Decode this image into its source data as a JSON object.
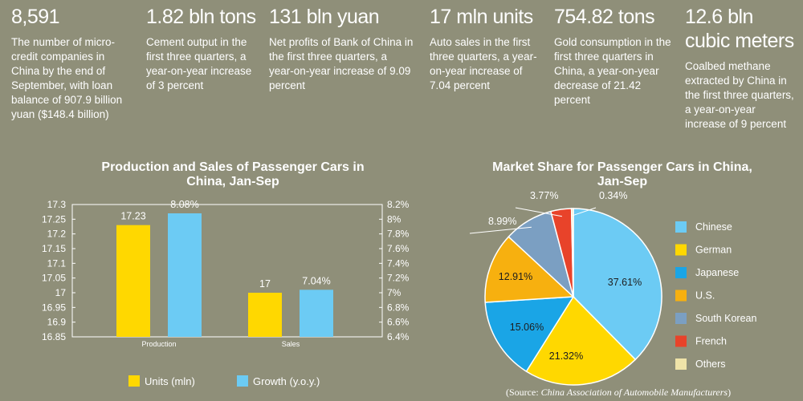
{
  "stats": [
    {
      "value": "8,591",
      "desc": "The number of micro-credit companies in China by the end of September, with loan balance of 907.9 billion yuan ($148.4 billion)"
    },
    {
      "value": "1.82 bln tons",
      "desc": "Cement output in the first three quarters, a year-on-year increase of 3 percent"
    },
    {
      "value": "131 bln yuan",
      "desc": "Net profits of Bank of China in the first three quarters, a year-on-year increase of 9.09 percent"
    },
    {
      "value": "17 mln units",
      "desc": "Auto sales in the first three quarters, a year-on-year increase of 7.04 percent"
    },
    {
      "value": "754.82 tons",
      "desc": "Gold consumption in the first three quarters in China, a year-on-year decrease of  21.42 percent"
    },
    {
      "value": "12.6 bln cubic meters",
      "desc": "Coalbed methane extracted by China in the first three quarters, a year-on-year increase of 9 percent"
    }
  ],
  "source": {
    "prefix": "(Source: ",
    "name": "China Association of Automobile Manufacturers",
    "suffix": ")"
  },
  "chart_data": [
    {
      "type": "bar",
      "title": "Production and Sales of Passenger Cars in China, Jan-Sep",
      "categories": [
        "Production",
        "Sales"
      ],
      "series": [
        {
          "name": "Units (mln)",
          "values": [
            17.23,
            17
          ],
          "labels": [
            "17.23",
            "17"
          ],
          "axis": "left",
          "color": "#ffd800"
        },
        {
          "name": "Growth (y.o.y.)",
          "values": [
            8.08,
            7.04
          ],
          "labels": [
            "8.08%",
            "7.04%"
          ],
          "axis": "right",
          "color": "#6ccbf4"
        }
      ],
      "ylim_left": [
        16.85,
        17.3
      ],
      "yticks_left": [
        "17.3",
        "17.25",
        "17.2",
        "17.15",
        "17.1",
        "17.05",
        "17",
        "16.95",
        "16.9",
        "16.85"
      ],
      "ylim_right": [
        6.4,
        8.2
      ],
      "yticks_right": [
        "8.2%",
        "8%",
        "7.8%",
        "7.6%",
        "7.4%",
        "7.2%",
        "7%",
        "6.8%",
        "6.6%",
        "6.4%"
      ],
      "legend_position": "bottom",
      "grid": false
    },
    {
      "type": "pie",
      "title": "Market Share for Passenger Cars in China, Jan-Sep",
      "slices": [
        {
          "name": "Chinese",
          "value": 37.61,
          "label": "37.61%",
          "color": "#6ccbf4"
        },
        {
          "name": "German",
          "value": 21.32,
          "label": "21.32%",
          "color": "#ffd800"
        },
        {
          "name": "Japanese",
          "value": 15.06,
          "label": "15.06%",
          "color": "#1aa5e6"
        },
        {
          "name": "U.S.",
          "value": 12.91,
          "label": "12.91%",
          "color": "#f7b00f"
        },
        {
          "name": "South Korean",
          "value": 8.99,
          "label": "8.99%",
          "color": "#7b9fc2"
        },
        {
          "name": "French",
          "value": 3.77,
          "label": "3.77%",
          "color": "#e8432a"
        },
        {
          "name": "Others",
          "value": 0.34,
          "label": "0.34%",
          "color": "#efe3a8"
        }
      ],
      "legend_position": "right"
    }
  ]
}
